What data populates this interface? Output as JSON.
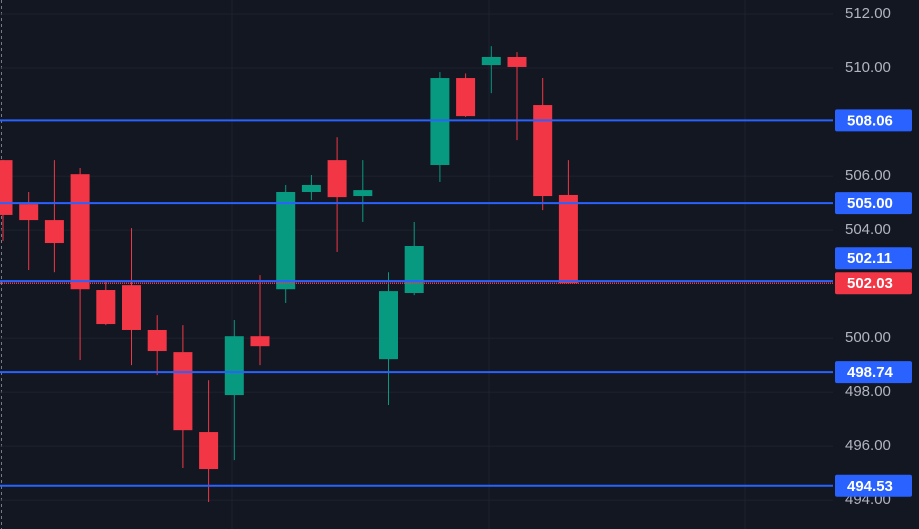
{
  "chart_data": {
    "type": "candlestick",
    "up_color": "#089981",
    "down_color": "#f23645",
    "open": [
      506.59,
      504.96,
      504.37,
      506.07,
      501.78,
      501.96,
      500.3,
      499.48,
      496.52,
      497.89,
      500.07,
      501.81,
      505.41,
      506.59,
      505.26,
      499.22,
      501.67,
      506.41,
      509.63,
      510.11,
      510.41,
      508.63,
      505.3
    ],
    "high": [
      506.6,
      505.41,
      506.59,
      506.3,
      502.15,
      504.07,
      500.85,
      500.48,
      498.44,
      500.67,
      502.33,
      505.67,
      506.04,
      507.44,
      506.59,
      502.44,
      504.3,
      509.85,
      509.8,
      510.81,
      510.59,
      509.63,
      506.59
    ],
    "low": [
      503.6,
      502.52,
      502.44,
      499.19,
      500.48,
      499.0,
      498.63,
      495.19,
      493.93,
      495.48,
      499.0,
      501.3,
      505.11,
      503.19,
      504.3,
      497.52,
      501.59,
      505.78,
      508.19,
      509.07,
      507.33,
      504.74,
      502.03
    ],
    "close": [
      504.56,
      504.37,
      503.52,
      501.81,
      500.52,
      500.3,
      499.52,
      496.59,
      495.15,
      500.07,
      499.7,
      505.41,
      505.67,
      505.22,
      505.48,
      501.74,
      503.41,
      509.63,
      508.22,
      510.41,
      510.04,
      505.26,
      502.03
    ],
    "ylim": [
      492.93,
      512.52
    ],
    "yticks": [
      {
        "value": 494,
        "label": "494.00"
      },
      {
        "value": 496,
        "label": "496.00"
      },
      {
        "value": 498,
        "label": "498.00"
      },
      {
        "value": 500,
        "label": "500.00"
      },
      {
        "value": 504,
        "label": "504.00"
      },
      {
        "value": 506,
        "label": "506.00"
      },
      {
        "value": 510,
        "label": "510.00"
      },
      {
        "value": 512,
        "label": "512.00"
      }
    ],
    "grid": true,
    "levels": [
      {
        "value": 508.06,
        "label": "508.06",
        "color": "#2962ff"
      },
      {
        "value": 505.0,
        "label": "505.00",
        "color": "#2962ff"
      },
      {
        "value": 502.11,
        "label": "502.11",
        "color": "#2962ff"
      },
      {
        "value": 498.74,
        "label": "498.74",
        "color": "#2962ff"
      },
      {
        "value": 494.53,
        "label": "494.53",
        "color": "#2962ff"
      },
      {
        "value": 502.03,
        "label": "502.03",
        "color": "#f23645",
        "dotted": true
      }
    ]
  }
}
